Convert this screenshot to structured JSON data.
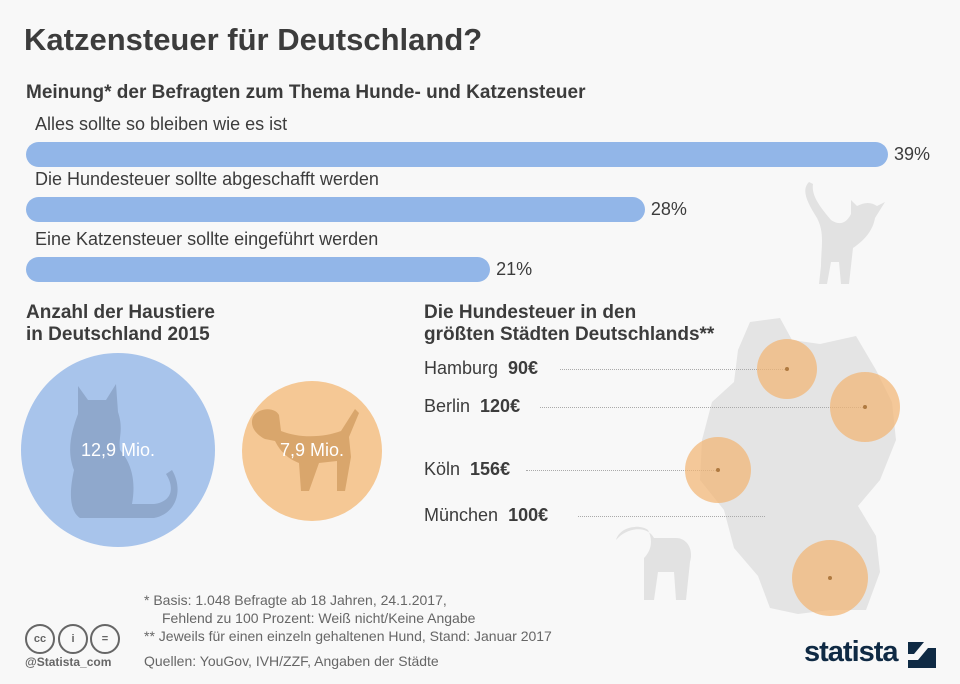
{
  "title": "Katzensteuer für Deutschland?",
  "colors": {
    "bar": "#92b6e8",
    "cat_circle": "#a8c4eb",
    "dog_circle": "#f5c895",
    "city_circle": "#f2b370",
    "silhouette": "#e2e2e2"
  },
  "chart_data": [
    {
      "type": "bar",
      "title": "Meinung* der Befragten zum Thema Hunde- und Katzensteuer",
      "categories": [
        "Alles sollte so bleiben wie es ist",
        "Die Hundesteuer sollte abgeschafft werden",
        "Eine Katzensteuer sollte eingeführt werden"
      ],
      "values": [
        39,
        28,
        21
      ],
      "value_labels": [
        "39%",
        "28%",
        "21%"
      ],
      "orientation": "horizontal"
    },
    {
      "type": "bubble",
      "title_line1": "Anzahl der Haustiere",
      "title_line2": "in Deutschland 2015",
      "items": [
        {
          "name": "cat",
          "icon": "cat-silhouette-icon",
          "value": 12.9,
          "label": "12,9 Mio."
        },
        {
          "name": "dog",
          "icon": "dog-silhouette-icon",
          "value": 7.9,
          "label": "7,9 Mio."
        }
      ]
    },
    {
      "type": "map-bubble",
      "title_line1": "Die Hundesteuer in den",
      "title_line2": "größten Städten Deutschlands**",
      "cities": [
        {
          "name": "Hamburg",
          "value": 90,
          "label": "90€"
        },
        {
          "name": "Berlin",
          "value": 120,
          "label": "120€"
        },
        {
          "name": "Köln",
          "value": 156,
          "label": "156€"
        },
        {
          "name": "München",
          "value": 100,
          "label": "100€"
        }
      ]
    }
  ],
  "footer": {
    "note1a": "*  Basis: 1.048 Befragte ab 18 Jahren, 24.1.2017,",
    "note1b": "Fehlend zu 100 Prozent: Weiß nicht/Keine Angabe",
    "note2": "** Jeweils für einen einzeln gehaltenen Hund, Stand: Januar 2017",
    "sources": "Quellen: YouGov, IVH/ZZF, Angaben der Städte",
    "handle": "@Statista_com",
    "cc_icons": [
      "cc",
      "i",
      "="
    ],
    "logo": "statista"
  }
}
